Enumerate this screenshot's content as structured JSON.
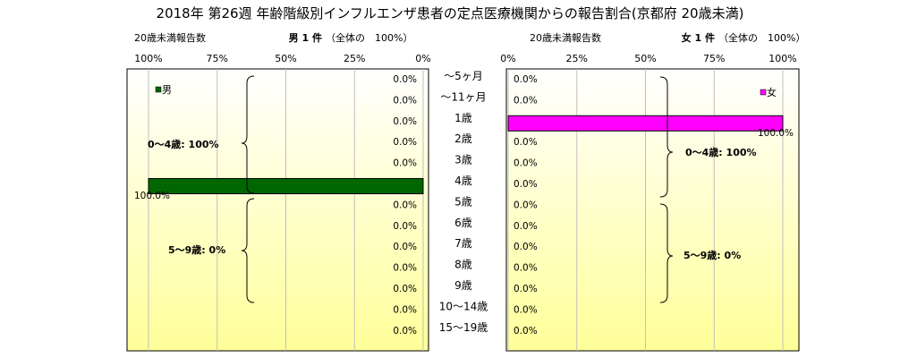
{
  "title": "2018年 第26週 年齢階級別インフルエンザ患者の定点医療機関からの報告割合(京都府 20歳未満)",
  "male_panel": {
    "header_left": "20歳未満報告数",
    "header_main": "男 1 件",
    "header_note": "（全体の　100%）",
    "legend": "男",
    "bracket_labels": [
      "0～4歳: 100%",
      "5～9歳: 0%"
    ]
  },
  "female_panel": {
    "header_left": "20歳未満報告数",
    "header_main": "女 1 件",
    "header_note": "（全体の　100%）",
    "legend": "女",
    "bracket_labels": [
      "0～4歳: 100%",
      "5～9歳: 0%"
    ]
  },
  "colors": {
    "male": "#006600",
    "female": "#ff00ff",
    "plot_top": "#ffffff",
    "plot_bottom": "#ffff99"
  },
  "chart_data": [
    {
      "type": "bar",
      "orientation": "horizontal-reversed",
      "series": [
        {
          "name": "男",
          "values": [
            0,
            0,
            0,
            0,
            0,
            100,
            0,
            0,
            0,
            0,
            0,
            0,
            0
          ]
        }
      ],
      "categories": [
        "～5ヶ月",
        "～11ヶ月",
        "1歳",
        "2歳",
        "3歳",
        "4歳",
        "5歳",
        "6歳",
        "7歳",
        "8歳",
        "9歳",
        "10～14歳",
        "15～19歳"
      ],
      "data_labels": [
        "0.0%",
        "0.0%",
        "0.0%",
        "0.0%",
        "0.0%",
        "100.0%",
        "0.0%",
        "0.0%",
        "0.0%",
        "0.0%",
        "0.0%",
        "0.0%",
        "0.0%"
      ],
      "xlim": [
        0,
        100
      ],
      "tick_labels": [
        "100%",
        "75%",
        "50%",
        "25%",
        "0%"
      ],
      "grid": true
    },
    {
      "type": "bar",
      "orientation": "horizontal",
      "series": [
        {
          "name": "女",
          "values": [
            0,
            0,
            100,
            0,
            0,
            0,
            0,
            0,
            0,
            0,
            0,
            0,
            0
          ]
        }
      ],
      "categories": [
        "～5ヶ月",
        "～11ヶ月",
        "1歳",
        "2歳",
        "3歳",
        "4歳",
        "5歳",
        "6歳",
        "7歳",
        "8歳",
        "9歳",
        "10～14歳",
        "15～19歳"
      ],
      "data_labels": [
        "0.0%",
        "0.0%",
        "100.0%",
        "0.0%",
        "0.0%",
        "0.0%",
        "0.0%",
        "0.0%",
        "0.0%",
        "0.0%",
        "0.0%",
        "0.0%",
        "0.0%"
      ],
      "xlim": [
        0,
        100
      ],
      "tick_labels": [
        "0%",
        "25%",
        "50%",
        "75%",
        "100%"
      ],
      "grid": true
    }
  ]
}
